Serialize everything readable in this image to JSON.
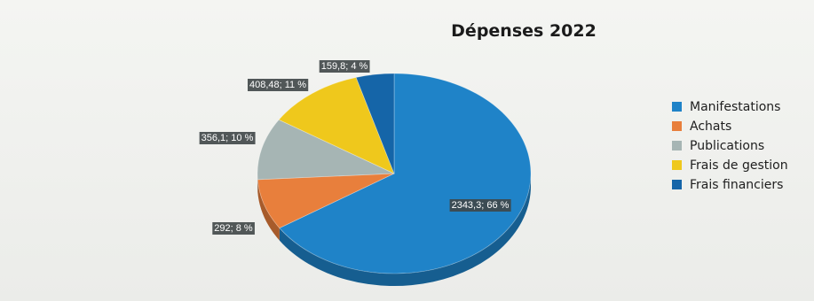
{
  "colors": {
    "manifestations": "#1f83c8",
    "achats": "#e87f3c",
    "publications": "#a6b5b4",
    "frais_gestion": "#efc81c",
    "frais_financiers": "#1565a8",
    "label_bg": "#3f4647"
  },
  "chart_data": {
    "type": "pie",
    "title": "Dépenses 2022",
    "legend_position": "right",
    "slices": [
      {
        "name": "Manifestations",
        "value": 2343.3,
        "percent": 66,
        "label": "2343,3; 66 %"
      },
      {
        "name": "Achats",
        "value": 292,
        "percent": 8,
        "label": "292; 8 %"
      },
      {
        "name": "Publications",
        "value": 356.1,
        "percent": 10,
        "label": "356,1; 10 %"
      },
      {
        "name": "Frais de gestion",
        "value": 408.48,
        "percent": 11,
        "label": "408,48; 11 %"
      },
      {
        "name": "Frais financiers",
        "value": 159.8,
        "percent": 4,
        "label": "159,8; 4 %"
      }
    ]
  }
}
